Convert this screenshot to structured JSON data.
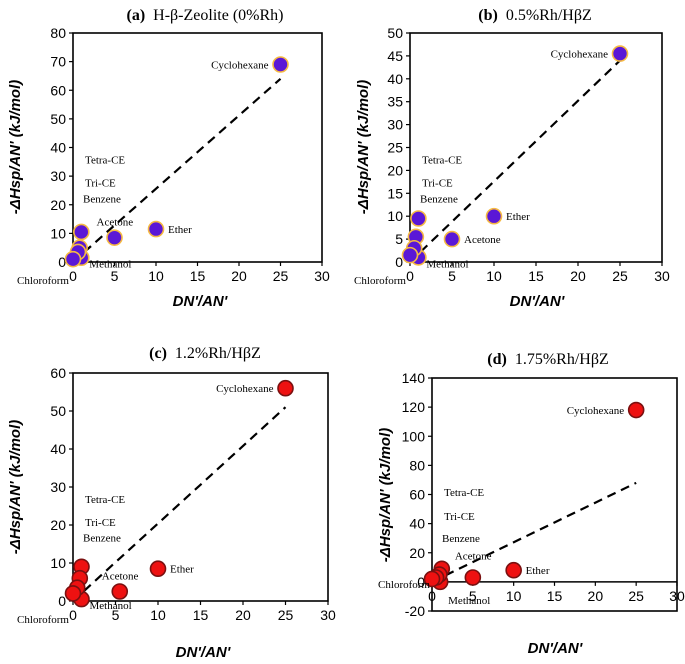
{
  "chart_data": [
    {
      "type": "scatter",
      "panel": "(a)",
      "title": "H-β-Zeolite (0%Rh)",
      "xlabel": "DN'/AN'",
      "ylabel": "-ΔHsp/AN' (kJ/mol)",
      "xlim": [
        0,
        30
      ],
      "ylim": [
        0,
        80
      ],
      "xticks": [
        0,
        5,
        10,
        15,
        20,
        25,
        30
      ],
      "yticks": [
        0,
        10,
        20,
        30,
        40,
        50,
        60,
        70,
        80
      ],
      "marker_fill": "#5a17d6",
      "marker_edge": "#f5b942",
      "trend": [
        [
          0,
          0
        ],
        [
          25,
          64
        ]
      ],
      "points": [
        {
          "label": "Cyclohexane",
          "x": 25,
          "y": 69
        },
        {
          "label": "Ether",
          "x": 10,
          "y": 11.5
        },
        {
          "label": "Acetone",
          "x": 5,
          "y": 8.5
        },
        {
          "label": "Methanol",
          "x": 1,
          "y": 1.5
        },
        {
          "label": "Benzene",
          "x": 1,
          "y": 10.5
        },
        {
          "label": "Tri-CE",
          "x": 0.8,
          "y": 5
        },
        {
          "label": "Tetra-CE",
          "x": 0.6,
          "y": 3.5
        },
        {
          "label": "Chloroform",
          "x": 0,
          "y": 1
        }
      ]
    },
    {
      "type": "scatter",
      "panel": "(b)",
      "title": "0.5%Rh/HβZ",
      "xlabel": "DN'/AN'",
      "ylabel": "-ΔHsp/AN' (kJ/mol)",
      "xlim": [
        0,
        30
      ],
      "ylim": [
        0,
        50
      ],
      "xticks": [
        0,
        5,
        10,
        15,
        20,
        25,
        30
      ],
      "yticks": [
        0,
        5,
        10,
        15,
        20,
        25,
        30,
        35,
        40,
        45,
        50
      ],
      "marker_fill": "#5a17d6",
      "marker_edge": "#f5b942",
      "trend": [
        [
          0,
          0
        ],
        [
          25,
          44
        ]
      ],
      "points": [
        {
          "label": "Cyclohexane",
          "x": 25,
          "y": 45.5
        },
        {
          "label": "Ether",
          "x": 10,
          "y": 10
        },
        {
          "label": "Acetone",
          "x": 5,
          "y": 5
        },
        {
          "label": "Methanol",
          "x": 1,
          "y": 1
        },
        {
          "label": "Benzene",
          "x": 1,
          "y": 9.5
        },
        {
          "label": "Tri-CE",
          "x": 0.7,
          "y": 5.5
        },
        {
          "label": "Tetra-CE",
          "x": 0.5,
          "y": 3
        },
        {
          "label": "Chloroform",
          "x": 0,
          "y": 1.5
        }
      ]
    },
    {
      "type": "scatter",
      "panel": "(c)",
      "title": "1.2%Rh/HβZ",
      "xlabel": "DN'/AN'",
      "ylabel": "-ΔHsp/AN' (kJ/mol)",
      "xlim": [
        0,
        30
      ],
      "ylim": [
        0,
        60
      ],
      "xticks": [
        0,
        5,
        10,
        15,
        20,
        25,
        30
      ],
      "yticks": [
        0,
        10,
        20,
        30,
        40,
        50,
        60
      ],
      "marker_fill": "#ee1111",
      "marker_edge": "#7a1010",
      "trend": [
        [
          0,
          0
        ],
        [
          25,
          51
        ]
      ],
      "points": [
        {
          "label": "Cyclohexane",
          "x": 25,
          "y": 56
        },
        {
          "label": "Ether",
          "x": 10,
          "y": 8.5
        },
        {
          "label": "Acetone",
          "x": 5.5,
          "y": 2.5
        },
        {
          "label": "Methanol",
          "x": 1,
          "y": 0.5
        },
        {
          "label": "Benzene",
          "x": 1,
          "y": 9
        },
        {
          "label": "Tri-CE",
          "x": 0.8,
          "y": 6
        },
        {
          "label": "Tetra-CE",
          "x": 0.5,
          "y": 3.5
        },
        {
          "label": "Chloroform",
          "x": 0,
          "y": 2
        }
      ]
    },
    {
      "type": "scatter",
      "panel": "(d)",
      "title": "1.75%Rh/HβZ",
      "xlabel": "DN'/AN'",
      "ylabel": "-ΔHsp/AN' (kJ/mol)",
      "xlim": [
        0,
        30
      ],
      "ylim": [
        -20,
        140
      ],
      "xticks": [
        0,
        5,
        10,
        15,
        20,
        25,
        30
      ],
      "yticks": [
        -20,
        0,
        20,
        40,
        60,
        80,
        100,
        120,
        140
      ],
      "marker_fill": "#ee1111",
      "marker_edge": "#7a1010",
      "trend": [
        [
          0,
          0
        ],
        [
          25,
          68
        ]
      ],
      "points": [
        {
          "label": "Cyclohexane",
          "x": 25,
          "y": 118
        },
        {
          "label": "Ether",
          "x": 10,
          "y": 8
        },
        {
          "label": "Acetone",
          "x": 5,
          "y": 3
        },
        {
          "label": "Methanol",
          "x": 1,
          "y": 0
        },
        {
          "label": "Benzene",
          "x": 1.2,
          "y": 9
        },
        {
          "label": "Tri-CE",
          "x": 0.9,
          "y": 5
        },
        {
          "label": "Tetra-CE",
          "x": 0.5,
          "y": 3
        },
        {
          "label": "Chloroform",
          "x": 0,
          "y": 2
        }
      ]
    }
  ]
}
